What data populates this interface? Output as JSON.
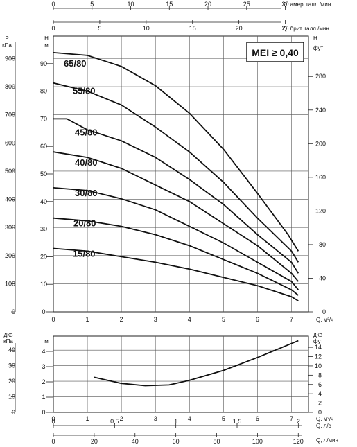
{
  "chart_data": [
    {
      "type": "line",
      "badge": "MEI ≥ 0,40",
      "x": {
        "label": "Q, м³/ч",
        "range": [
          0,
          7.5
        ],
        "ticks": [
          "0",
          "1",
          "2",
          "3",
          "4",
          "5",
          "6",
          "7"
        ]
      },
      "top_axes": [
        {
          "label": "Q, амер. галл./мин",
          "range": [
            0,
            33
          ],
          "ticks": [
            "0",
            "5",
            "10",
            "15",
            "20",
            "25",
            "30"
          ]
        },
        {
          "label": "Q, брит. галл./мин",
          "range": [
            0,
            27.5
          ],
          "ticks": [
            "0",
            "5",
            "10",
            "15",
            "20",
            "25"
          ]
        }
      ],
      "y_left_kpa": {
        "label": "P",
        "unit": "кПа",
        "range": [
          0,
          980
        ],
        "ticks": [
          "0",
          "100",
          "200",
          "300",
          "400",
          "500",
          "600",
          "700",
          "800",
          "900"
        ]
      },
      "y_left_m": {
        "label": "H",
        "unit": "м",
        "range": [
          0,
          100
        ],
        "ticks": [
          "0",
          "10",
          "20",
          "30",
          "40",
          "50",
          "60",
          "70",
          "80",
          "90"
        ]
      },
      "y_right_ft": {
        "label": "H",
        "unit": "фут",
        "range": [
          0,
          328
        ],
        "ticks": [
          "0",
          "40",
          "80",
          "120",
          "160",
          "200",
          "240",
          "280"
        ]
      },
      "grid": true,
      "series": [
        {
          "name": "65/80",
          "x": [
            0,
            1,
            2,
            3,
            4,
            5,
            6,
            6.9,
            7.2
          ],
          "y": [
            94,
            93,
            89,
            82,
            72,
            59,
            43,
            28,
            22
          ]
        },
        {
          "name": "55/80",
          "x": [
            0,
            1,
            2,
            3,
            4,
            5,
            6,
            7,
            7.2
          ],
          "y": [
            83,
            80,
            75,
            67,
            58,
            47,
            34,
            22,
            18
          ]
        },
        {
          "name": "45/80",
          "x": [
            0,
            0.4,
            1,
            2,
            3,
            4,
            5,
            6,
            7,
            7.2
          ],
          "y": [
            70,
            70,
            66,
            62,
            56,
            48,
            39,
            28,
            18,
            14
          ]
        },
        {
          "name": "40/80",
          "x": [
            0,
            1,
            2,
            3,
            4,
            5,
            6,
            7,
            7.2
          ],
          "y": [
            58,
            56,
            52,
            46,
            40,
            32,
            24,
            14,
            11
          ]
        },
        {
          "name": "30/80",
          "x": [
            0,
            1,
            2,
            3,
            4,
            5,
            6,
            7,
            7.2
          ],
          "y": [
            45,
            44,
            41,
            37,
            31,
            25,
            18,
            11,
            8
          ]
        },
        {
          "name": "20/80",
          "x": [
            0,
            1,
            2,
            3,
            4,
            5,
            6,
            7,
            7.2
          ],
          "y": [
            34,
            33,
            31,
            28,
            24,
            19,
            14,
            8,
            6
          ]
        },
        {
          "name": "15/80",
          "x": [
            0,
            1,
            2,
            3,
            4,
            5,
            6,
            7,
            7.2
          ],
          "y": [
            23,
            22,
            20,
            18,
            15.5,
            12.5,
            9.5,
            5.5,
            4
          ]
        }
      ]
    },
    {
      "type": "line",
      "x": {
        "label": "Q, м³/ч",
        "range": [
          0,
          7.5
        ],
        "ticks": [
          "0",
          "1",
          "2",
          "3",
          "4",
          "5",
          "6",
          "7"
        ]
      },
      "bottom_axes": [
        {
          "label": "Q, л/с",
          "range": [
            0,
            2.083
          ],
          "ticks": [
            "0",
            "0,5",
            "1",
            "1,5",
            "2"
          ]
        },
        {
          "label": "Q, л/мин",
          "range": [
            0,
            125
          ],
          "ticks": [
            "0",
            "20",
            "40",
            "60",
            "80",
            "100",
            "120"
          ]
        }
      ],
      "y_left_kpa": {
        "label": "ДКЗ",
        "unit": "кПа",
        "range": [
          0,
          49
        ],
        "ticks": [
          "0",
          "10",
          "20",
          "30",
          "40"
        ]
      },
      "y_left_m": {
        "label": "",
        "unit": "м",
        "range": [
          0,
          5
        ],
        "ticks": [
          "0",
          "1",
          "2",
          "3",
          "4"
        ]
      },
      "y_right_ft": {
        "label": "ДКЗ",
        "unit": "фут",
        "range": [
          0,
          16.4
        ],
        "ticks": [
          "0",
          "2",
          "4",
          "6",
          "8",
          "10",
          "12",
          "14"
        ]
      },
      "grid": true,
      "series": [
        {
          "x": [
            1.2,
            2,
            2.7,
            3.4,
            4,
            5,
            6,
            7.2
          ],
          "y": [
            2.3,
            1.9,
            1.75,
            1.8,
            2.1,
            2.75,
            3.6,
            4.7
          ]
        }
      ]
    }
  ]
}
